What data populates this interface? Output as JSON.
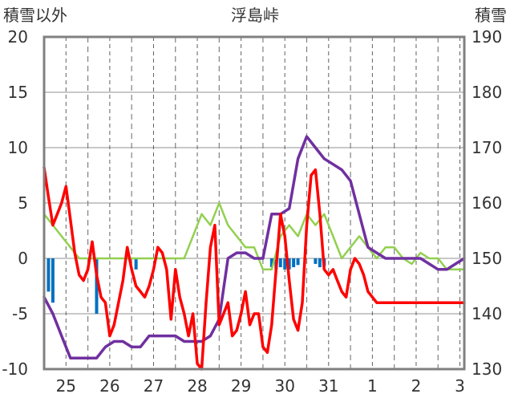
{
  "chart_data": {
    "type": "line",
    "title": "浮島峠",
    "y_left_label": "積雪以外",
    "y_right_label": "積雪",
    "ylim_left": [
      -10,
      20
    ],
    "ylim_right": [
      130,
      190
    ],
    "y_left_ticks": [
      "-10",
      "-5",
      "0",
      "5",
      "10",
      "15",
      "20"
    ],
    "y_right_ticks": [
      "130",
      "140",
      "150",
      "160",
      "170",
      "180",
      "190"
    ],
    "x_days": [
      "25",
      "26",
      "27",
      "28",
      "29",
      "30",
      "31",
      "1",
      "2",
      "3"
    ],
    "x_range": [
      0,
      9.6
    ],
    "grid": true,
    "colors": {
      "temperature": "#ff0000",
      "snow_depth": "#7030a0",
      "wind": "#92d050",
      "precip": "#0070c0",
      "frame": "#808080"
    },
    "series": [
      {
        "axis": "left",
        "color": "#ff0000",
        "x": [
          0,
          0.1,
          0.2,
          0.3,
          0.4,
          0.5,
          0.6,
          0.7,
          0.8,
          0.9,
          1.0,
          1.1,
          1.2,
          1.3,
          1.4,
          1.5,
          1.6,
          1.7,
          1.8,
          1.9,
          2.0,
          2.1,
          2.2,
          2.3,
          2.4,
          2.5,
          2.6,
          2.7,
          2.8,
          2.9,
          3.0,
          3.1,
          3.2,
          3.3,
          3.4,
          3.5,
          3.6,
          3.7,
          3.8,
          3.9,
          4.0,
          4.1,
          4.2,
          4.3,
          4.4,
          4.5,
          4.6,
          4.7,
          4.8,
          4.9,
          5.0,
          5.1,
          5.2,
          5.3,
          5.4,
          5.5,
          5.6,
          5.7,
          5.8,
          5.9,
          6.0,
          6.1,
          6.2,
          6.3,
          6.4,
          6.5,
          6.6,
          6.7,
          6.8,
          6.9,
          7.0,
          7.1,
          7.2,
          7.3,
          7.4,
          7.5,
          7.6,
          7.7,
          7.8,
          7.9,
          8.0,
          8.1,
          8.2,
          8.3,
          8.4,
          8.5,
          8.6,
          8.7,
          8.8,
          8.9,
          9.0,
          9.1,
          9.2,
          9.3,
          9.4,
          9.5,
          9.6
        ],
        "values": [
          8.2,
          5.5,
          3,
          4,
          5,
          6.5,
          3.5,
          0.5,
          -1.5,
          -2,
          -1,
          1.5,
          -1.5,
          -3.5,
          -4,
          -7,
          -6,
          -4,
          -2,
          1,
          -1,
          -2.5,
          -3,
          -3.5,
          -2.5,
          -1,
          1,
          0.5,
          -1,
          -5.5,
          -1,
          -3.5,
          -5,
          -7,
          -5,
          -9.5,
          -10,
          -4,
          1,
          3,
          -6,
          -5,
          -4,
          -7,
          -6.5,
          -5,
          -3,
          -6,
          -5,
          -5,
          -8,
          -8.5,
          -6,
          -1,
          4,
          2,
          -2,
          -5.5,
          -6.5,
          -4,
          3,
          7.5,
          8,
          4,
          -1,
          -1.5,
          -1,
          -2,
          -3,
          -3.5,
          -1,
          0,
          -0.5,
          -1.5,
          -3,
          -3.5,
          -4,
          -4,
          -4,
          -4,
          -4,
          -4,
          -4,
          -4,
          -4,
          -4,
          -4,
          -4,
          -4,
          -4,
          -4,
          -4,
          -4,
          -4,
          -4,
          -4,
          -4
        ]
      },
      {
        "axis": "right",
        "color": "#7030a0",
        "x": [
          0,
          0.2,
          0.4,
          0.6,
          0.8,
          1.0,
          1.2,
          1.4,
          1.6,
          1.8,
          2.0,
          2.2,
          2.4,
          2.6,
          2.8,
          3.0,
          3.2,
          3.4,
          3.6,
          3.8,
          4.0,
          4.2,
          4.4,
          4.6,
          4.8,
          5.0,
          5.2,
          5.4,
          5.6,
          5.8,
          6.0,
          6.2,
          6.4,
          6.6,
          6.8,
          7.0,
          7.2,
          7.4,
          7.6,
          7.8,
          8.0,
          8.2,
          8.4,
          8.6,
          8.8,
          9.0,
          9.2,
          9.4,
          9.6
        ],
        "values": [
          143,
          140,
          136,
          132,
          132,
          132,
          132,
          134,
          135,
          135,
          134,
          134,
          136,
          136,
          136,
          136,
          135,
          135,
          135,
          136,
          139,
          150,
          151,
          151,
          150,
          150,
          158,
          158,
          159,
          168,
          172,
          170,
          168,
          167,
          166,
          164,
          158,
          152,
          151,
          150,
          150,
          150,
          150,
          150,
          149,
          148,
          148,
          149,
          150
        ]
      },
      {
        "axis": "left",
        "color": "#92d050",
        "x": [
          0,
          0.2,
          0.4,
          0.6,
          0.8,
          1.0,
          1.2,
          1.4,
          1.6,
          1.8,
          2.0,
          2.2,
          2.4,
          2.6,
          2.8,
          3.0,
          3.2,
          3.4,
          3.6,
          3.8,
          4.0,
          4.2,
          4.4,
          4.6,
          4.8,
          5.0,
          5.2,
          5.4,
          5.6,
          5.8,
          6.0,
          6.2,
          6.4,
          6.6,
          6.8,
          7.0,
          7.2,
          7.4,
          7.6,
          7.8,
          8.0,
          8.2,
          8.4,
          8.6,
          8.8,
          9.0,
          9.2,
          9.4,
          9.6
        ],
        "values": [
          4,
          3,
          2,
          1,
          0,
          0,
          0,
          0,
          0,
          0,
          0,
          0,
          0,
          0,
          0,
          0,
          0,
          2,
          4,
          3,
          5,
          3,
          2,
          1,
          1,
          -1,
          -1,
          2,
          3,
          2,
          4,
          3,
          4,
          2,
          0,
          1,
          2,
          1,
          0,
          1,
          1,
          0,
          -0.5,
          0.5,
          0,
          0,
          -1,
          -1,
          -1
        ]
      }
    ],
    "bars": {
      "axis": "left",
      "color": "#0070c0",
      "x": [
        0.1,
        0.2,
        1.2,
        2.1,
        5.2,
        5.3,
        5.4,
        5.5,
        5.6,
        5.7,
        5.8,
        6.2,
        6.3,
        6.4
      ],
      "values": [
        -3,
        -4,
        -5,
        -1,
        -0.8,
        -1,
        -0.8,
        -1,
        -1,
        -0.8,
        -0.6,
        -0.5,
        -0.8,
        -0.7
      ]
    }
  }
}
